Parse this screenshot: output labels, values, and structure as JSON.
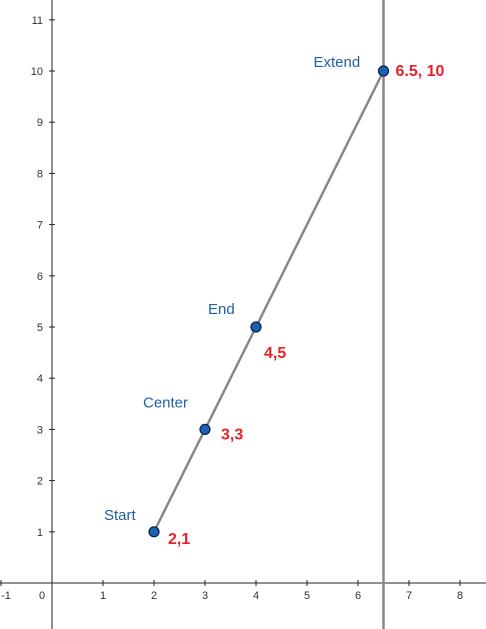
{
  "chart_data": {
    "type": "scatter",
    "xlim": [
      -1.0,
      8.5
    ],
    "ylim": [
      -0.95,
      11.5
    ],
    "x_ticks": [
      "-1",
      "0",
      "1",
      "2",
      "3",
      "4",
      "5",
      "6",
      "7",
      "8"
    ],
    "y_ticks": [
      "1",
      "2",
      "3",
      "4",
      "5",
      "6",
      "7",
      "8",
      "9",
      "10",
      "11"
    ],
    "grid": false,
    "line_color": "#888888",
    "point_fill": "#1a62b8",
    "name_color": "#1f5fa8",
    "coord_color": "#e8202a",
    "points": [
      {
        "name": "Start",
        "x": 2,
        "y": 1,
        "coord_label": "2,1"
      },
      {
        "name": "Center",
        "x": 3,
        "y": 3,
        "coord_label": "3,3"
      },
      {
        "name": "End",
        "x": 4,
        "y": 5,
        "coord_label": "4,5"
      },
      {
        "name": "Extend",
        "x": 6.5,
        "y": 10,
        "coord_label": "6.5, 10"
      }
    ],
    "segment": {
      "from": [
        2,
        1
      ],
      "to": [
        6.5,
        10
      ]
    },
    "vertical_line": {
      "x": 6.5
    }
  }
}
